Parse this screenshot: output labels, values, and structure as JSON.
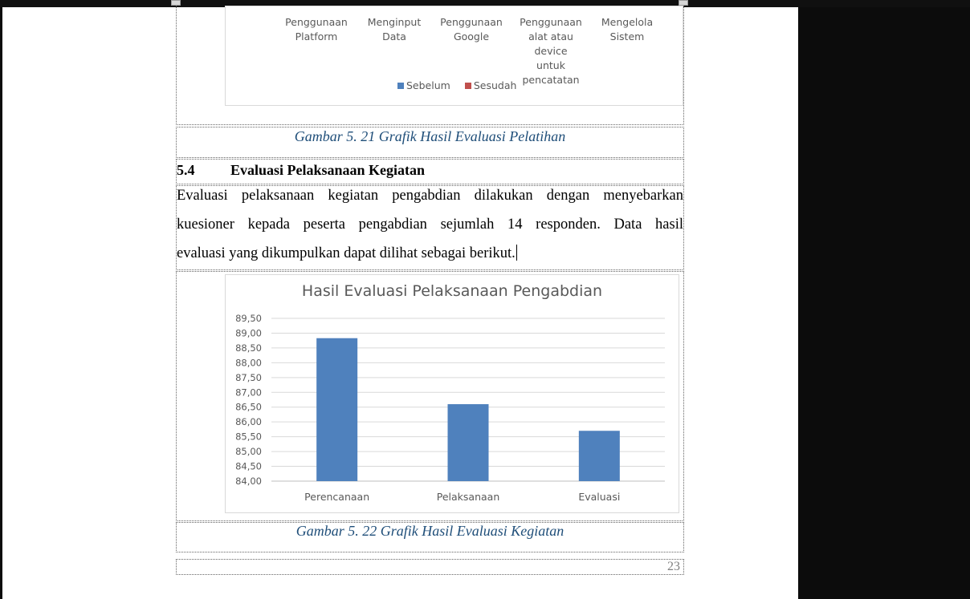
{
  "top_chart": {
    "categories": [
      "Penggunaan Platform",
      "Menginput Data",
      "Penggunaan Google",
      "Penggunaan alat atau device untuk pencatatan",
      "Mengelola Sistem"
    ],
    "category_lines": [
      [
        "Penggunaan",
        "Platform"
      ],
      [
        "Menginput",
        "Data"
      ],
      [
        "Penggunaan",
        "Google"
      ],
      [
        "Penggunaan",
        "alat atau device",
        "untuk",
        "pencatatan"
      ],
      [
        "Mengelola",
        "Sistem"
      ]
    ],
    "legend": [
      {
        "name": "Sebelum",
        "color": "#4f81bd"
      },
      {
        "name": "Sesudah",
        "color": "#c0504d"
      }
    ]
  },
  "caption_1": "Gambar 5. 21 Grafik Hasil Evaluasi Pelatihan",
  "section": {
    "number": "5.4",
    "title": "Evaluasi Pelaksanaan Kegiatan"
  },
  "paragraph": {
    "lines": [
      "Evaluasi pelaksanaan kegiatan pengabdian dilakukan dengan menyebarkan",
      "kuesioner kepada peserta pengabdian sejumlah 14 responden. Data hasil",
      "evaluasi yang dikumpulkan dapat dilihat sebagai berikut."
    ]
  },
  "chart_data": {
    "type": "bar",
    "title": "Hasil Evaluasi Pelaksanaan Pengabdian",
    "categories": [
      "Perencanaan",
      "Pelaksanaan",
      "Evaluasi"
    ],
    "values": [
      88.83,
      86.6,
      85.7
    ],
    "ylim": [
      84.0,
      89.5
    ],
    "yticks": [
      "84,00",
      "84,50",
      "85,00",
      "85,50",
      "86,00",
      "86,50",
      "87,00",
      "87,50",
      "88,00",
      "88,50",
      "89,00",
      "89,50"
    ],
    "grid": true,
    "bar_color": "#4f81bd"
  },
  "caption_2": "Gambar 5. 22 Grafik Hasil Evaluasi Kegiatan",
  "page_number": "23"
}
